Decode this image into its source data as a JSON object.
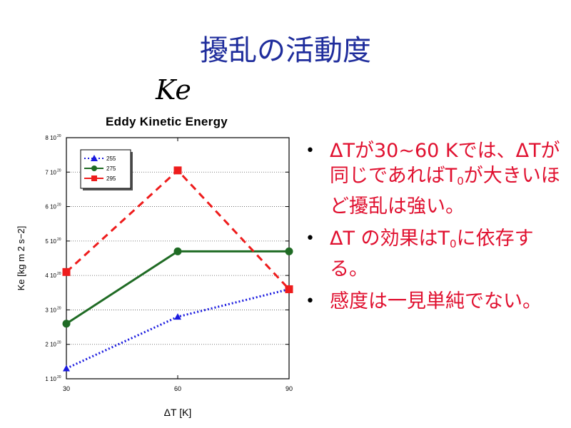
{
  "slide": {
    "title": "擾乱の活動度"
  },
  "ke_symbol": "Ke",
  "bullets": [
    {
      "text_parts": [
        "ΔTが30~60 Kでは、ΔTが同じであればT",
        "0",
        "が大きいほど擾乱は強い。"
      ]
    },
    {
      "text_parts": [
        "ΔT の効果はT",
        "0",
        "に依存する。"
      ]
    },
    {
      "text_parts": [
        " 感度は一見単純でない。"
      ]
    }
  ],
  "chart_data": {
    "type": "line",
    "title": "Eddy Kinetic Energy",
    "xlabel": "ΔT [K]",
    "ylabel": "Ke [kg m  2 s−2]",
    "x": [
      30,
      60,
      90
    ],
    "xticks": [
      "30",
      "60",
      "90"
    ],
    "yticks": [
      "1 10",
      "2 10",
      "3 10",
      "4 10",
      "5 10",
      "6 10",
      "7 10",
      "8 10"
    ],
    "ytick_exponent": "20",
    "ylim": [
      1e+20,
      8e+20
    ],
    "xlim": [
      30,
      90
    ],
    "grid": "horizontal dotted",
    "legend_position": "top-left",
    "series": [
      {
        "name": "255",
        "values": [
          1.3e+20,
          2.8e+20,
          3.6e+20
        ],
        "color": "#1a1adf",
        "dash": "dotted",
        "marker": "triangle"
      },
      {
        "name": "275",
        "values": [
          2.6e+20,
          4.7e+20,
          4.7e+20
        ],
        "color": "#1f6b24",
        "dash": "solid",
        "marker": "circle"
      },
      {
        "name": "295",
        "values": [
          4.1e+20,
          7.05e+20,
          3.6e+20
        ],
        "color": "#ee1c1c",
        "dash": "dashed",
        "marker": "square"
      }
    ]
  }
}
